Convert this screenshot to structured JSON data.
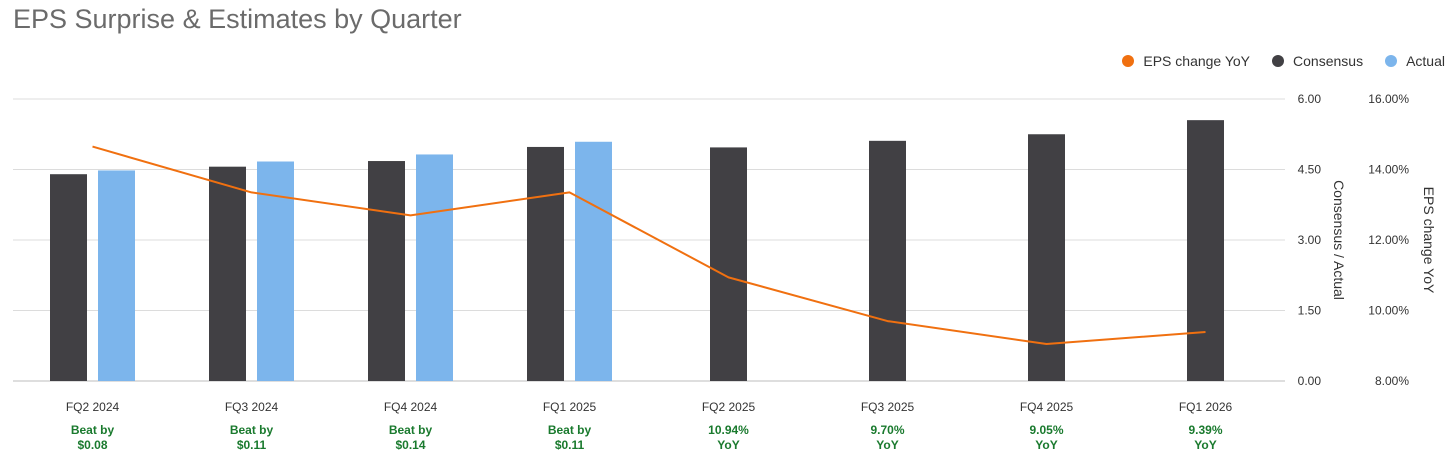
{
  "chart_data": {
    "type": "bar",
    "title": "EPS Surprise & Estimates by Quarter",
    "categories": [
      "FQ2 2024",
      "FQ3 2024",
      "FQ4 2024",
      "FQ1 2025",
      "FQ2 2025",
      "FQ3 2025",
      "FQ4 2025",
      "FQ1 2026"
    ],
    "series": [
      {
        "name": "Consensus",
        "kind": "bar",
        "axis": "left",
        "color": "#414044",
        "values": [
          4.4,
          4.56,
          4.68,
          4.98,
          4.97,
          5.11,
          5.25,
          5.55
        ]
      },
      {
        "name": "Actual",
        "kind": "bar",
        "axis": "left",
        "color": "#7cb5ec",
        "values": [
          4.48,
          4.67,
          4.82,
          5.09,
          null,
          null,
          null,
          null
        ]
      },
      {
        "name": "EPS change YoY",
        "kind": "line",
        "axis": "right",
        "color": "#f07010",
        "values": [
          14.65,
          13.35,
          12.7,
          13.35,
          10.94,
          9.7,
          9.05,
          9.39
        ]
      }
    ],
    "legend_order": [
      "EPS change YoY",
      "Consensus",
      "Actual"
    ],
    "legend_position": "top-right",
    "y_left": {
      "label": "Consensus / Actual",
      "min": 0,
      "max": 6,
      "ticks": [
        "0.00",
        "1.50",
        "3.00",
        "4.50",
        "6.00"
      ]
    },
    "y_right": {
      "label": "EPS change YoY",
      "min": 8,
      "max": 16,
      "ticks": [
        "8.00%",
        "10.00%",
        "12.00%",
        "14.00%",
        "16.00%"
      ]
    },
    "annotations": [
      [
        "Beat by",
        "$0.08"
      ],
      [
        "Beat by",
        "$0.11"
      ],
      [
        "Beat by",
        "$0.14"
      ],
      [
        "Beat by",
        "$0.11"
      ],
      [
        "10.94%",
        "YoY"
      ],
      [
        "9.70%",
        "YoY"
      ],
      [
        "9.05%",
        "YoY"
      ],
      [
        "9.39%",
        "YoY"
      ]
    ],
    "annotation_color": "#1a7a2e",
    "grid": true
  }
}
